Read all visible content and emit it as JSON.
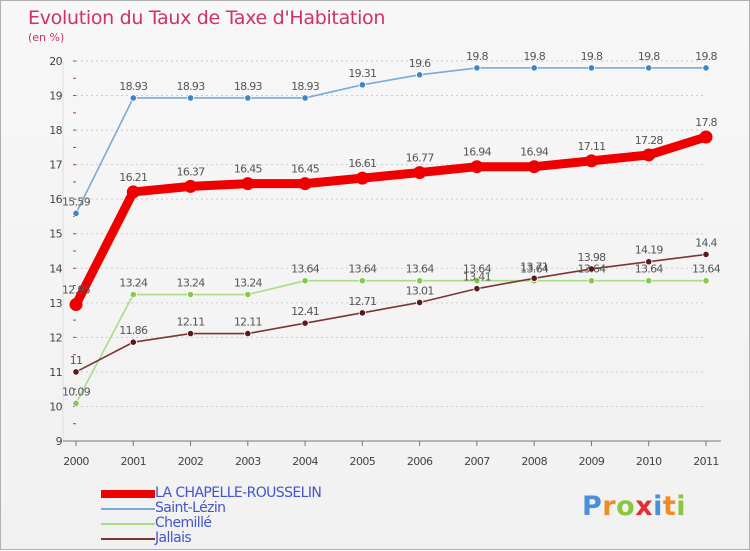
{
  "title": "Evolution du Taux de Taxe d'Habitation",
  "subtitle": "(en %)",
  "colors": {
    "title": "#cc3366",
    "grid": "#cccccc",
    "legend_text": "#4455cc"
  },
  "logo": {
    "letters": [
      "P",
      "r",
      "o",
      "x",
      "i",
      "t",
      "i"
    ],
    "colors": [
      "#4a90d9",
      "#f08a24",
      "#8cc63f",
      "#e03030",
      "#4a90d9",
      "#f08a24",
      "#8cc63f"
    ]
  },
  "chart_data": {
    "type": "line",
    "title": "Evolution du Taux de Taxe d'Habitation",
    "ylabel": "(en %)",
    "xlabel": "",
    "categories": [
      "2000",
      "2001",
      "2002",
      "2003",
      "2004",
      "2005",
      "2006",
      "2007",
      "2008",
      "2009",
      "2010",
      "2011"
    ],
    "ylim": [
      9,
      20
    ],
    "yticks": [
      9,
      10,
      11,
      12,
      13,
      14,
      15,
      16,
      17,
      18,
      19,
      20
    ],
    "grid": "horizontal dashed",
    "legend_position": "bottom-left",
    "series": [
      {
        "name": "LA CHAPELLE-ROUSSELIN",
        "values": [
          12.95,
          16.21,
          16.37,
          16.45,
          16.45,
          16.61,
          16.77,
          16.94,
          16.94,
          17.11,
          17.28,
          17.8
        ],
        "labels": [
          "12.95",
          "16.21",
          "16.37",
          "16.45",
          "16.45",
          "16.61",
          "16.77",
          "16.94",
          "16.94",
          "17.11",
          "17.28",
          "17.8"
        ],
        "color": "#ee0000",
        "marker": "#ee0000",
        "emphasis": true
      },
      {
        "name": "Saint-Lézin",
        "values": [
          15.59,
          18.93,
          18.93,
          18.93,
          18.93,
          19.31,
          19.6,
          19.8,
          19.8,
          19.8,
          19.8,
          19.8
        ],
        "labels": [
          "15.59",
          "18.93",
          "18.93",
          "18.93",
          "18.93",
          "19.31",
          "19.6",
          "19.8",
          "19.8",
          "19.8",
          "19.8",
          "19.8"
        ],
        "color": "#7aaad6",
        "marker": "#3f86c6"
      },
      {
        "name": "Chemillé",
        "values": [
          10.09,
          13.24,
          13.24,
          13.24,
          13.64,
          13.64,
          13.64,
          13.64,
          13.64,
          13.64,
          13.64,
          13.64
        ],
        "labels": [
          "10.09",
          "13.24",
          "13.24",
          "13.24",
          "13.64",
          "13.64",
          "13.64",
          "13.64",
          "13.64",
          "13.64",
          "13.64",
          "13.64"
        ],
        "color": "#a8dc86",
        "marker": "#86c852"
      },
      {
        "name": "Jallais",
        "values": [
          11,
          11.86,
          12.11,
          12.11,
          12.41,
          12.71,
          13.01,
          13.41,
          13.71,
          13.98,
          14.19,
          14.4
        ],
        "labels": [
          "11",
          "11.86",
          "12.11",
          "12.11",
          "12.41",
          "12.71",
          "13.01",
          "13.41",
          "13.71",
          "13.98",
          "14.19",
          "14.4"
        ],
        "color": "#7a3535",
        "marker": "#5a1818"
      }
    ]
  }
}
